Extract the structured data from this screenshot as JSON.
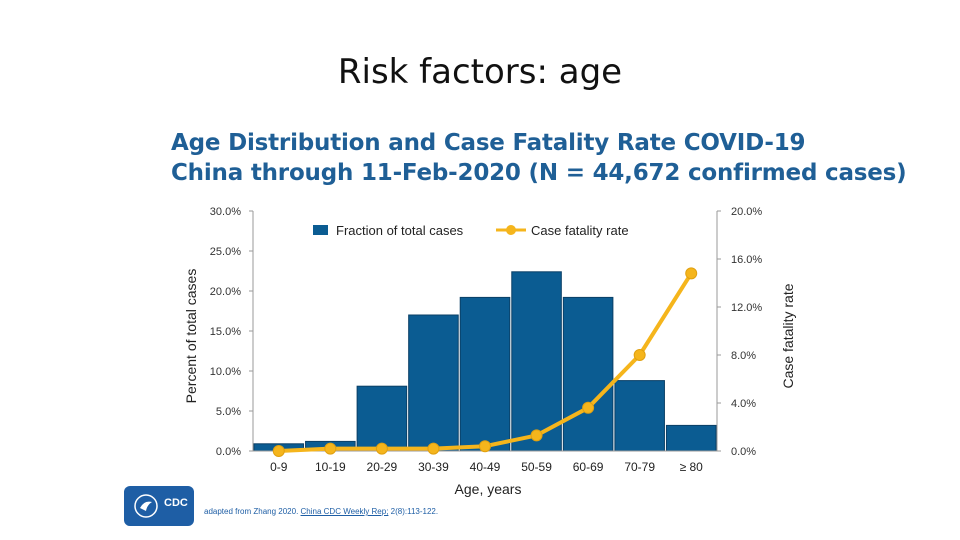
{
  "slide": {
    "title": "Risk factors: age"
  },
  "chart_data": {
    "type": "bar",
    "title_line1": "Age Distribution and Case Fatality Rate COVID-19",
    "title_line2": "China through 11-Feb-2020 (N = 44,672 confirmed cases)",
    "xlabel": "Age, years",
    "ylabel_left": "Percent of total cases",
    "ylabel_right": "Case fatality rate",
    "categories": [
      "0-9",
      "10-19",
      "20-29",
      "30-39",
      "40-49",
      "50-59",
      "60-69",
      "70-79",
      "≥ 80"
    ],
    "series": [
      {
        "name": "Fraction of total cases",
        "type": "bar",
        "axis": "left",
        "color": "#0b5c92",
        "values": [
          0.9,
          1.2,
          8.1,
          17.0,
          19.2,
          22.4,
          19.2,
          8.8,
          3.2
        ]
      },
      {
        "name": "Case fatality rate",
        "type": "line",
        "axis": "right",
        "color": "#f5b51c",
        "values": [
          0.0,
          0.2,
          0.2,
          0.2,
          0.4,
          1.3,
          3.6,
          8.0,
          14.8
        ]
      }
    ],
    "ylim_left": [
      0,
      30
    ],
    "yticks_left": [
      "0.0%",
      "5.0%",
      "10.0%",
      "15.0%",
      "20.0%",
      "25.0%",
      "30.0%"
    ],
    "ylim_right": [
      0,
      20
    ],
    "yticks_right": [
      "0.0%",
      "4.0%",
      "8.0%",
      "12.0%",
      "16.0%",
      "20.0%"
    ],
    "legend_position": "top",
    "grid": false
  },
  "footer": {
    "logo_text": "CDC",
    "source_prefix": "adapted from Zhang 2020.",
    "source_link": "China CDC Weekly Rep;",
    "source_suffix": "2(8):113-122."
  }
}
